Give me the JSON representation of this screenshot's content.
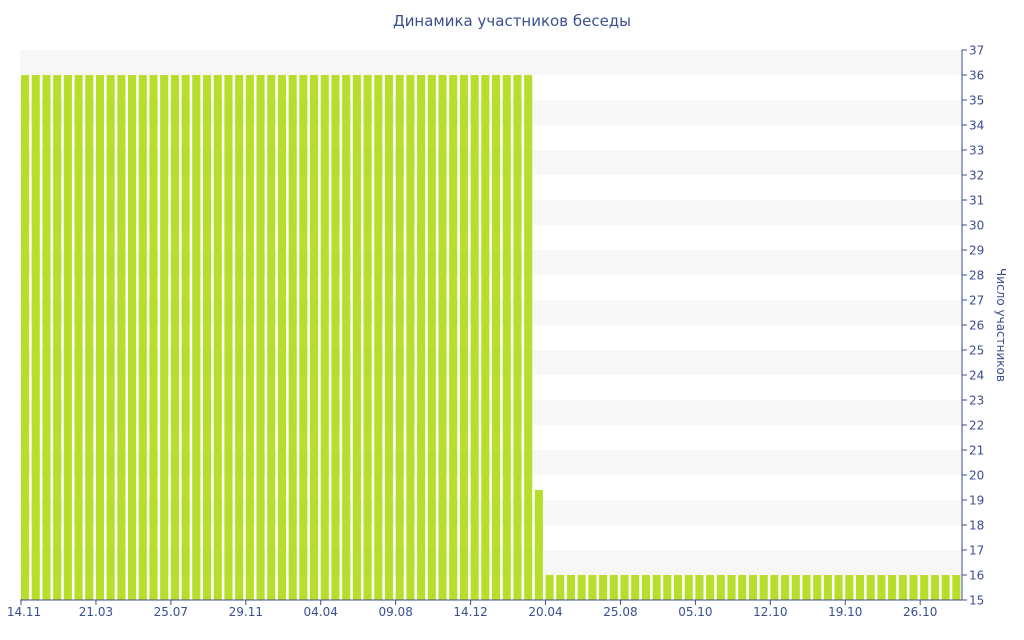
{
  "chart_data": {
    "type": "bar",
    "title": "Динамика участников беседы",
    "xlabel": "",
    "ylabel": "Число участников",
    "ylim": [
      15,
      37
    ],
    "yticks": [
      15,
      16,
      17,
      18,
      19,
      20,
      21,
      22,
      23,
      24,
      25,
      26,
      27,
      28,
      29,
      30,
      31,
      32,
      33,
      34,
      35,
      36,
      37
    ],
    "yaxis_side": "right",
    "grid": "alternating horizontal bands",
    "bar_color": "#b8de2c",
    "band_color": "#f7f7f7",
    "text_color": "#3b4f8f",
    "x_tick_labels": [
      "14.11",
      "21.03",
      "25.07",
      "29.11",
      "04.04",
      "09.08",
      "14.12",
      "20.04",
      "25.08",
      "05.10",
      "12.10",
      "19.10",
      "26.10"
    ],
    "x_tick_bar_index": [
      0,
      7,
      14,
      21,
      28,
      35,
      42,
      49,
      56,
      63,
      70,
      77,
      84
    ],
    "values": [
      36,
      36,
      36,
      36,
      36,
      36,
      36,
      36,
      36,
      36,
      36,
      36,
      36,
      36,
      36,
      36,
      36,
      36,
      36,
      36,
      36,
      36,
      36,
      36,
      36,
      36,
      36,
      36,
      36,
      36,
      36,
      36,
      36,
      36,
      36,
      36,
      36,
      36,
      36,
      36,
      36,
      36,
      36,
      36,
      36,
      36,
      36,
      36,
      19.4,
      16,
      16,
      16,
      16,
      16,
      16,
      16,
      16,
      16,
      16,
      16,
      16,
      16,
      16,
      16,
      16,
      16,
      16,
      16,
      16,
      16,
      16,
      16,
      16,
      16,
      16,
      16,
      16,
      16,
      16,
      16,
      16,
      16,
      16,
      16,
      16,
      16,
      16,
      16
    ]
  }
}
